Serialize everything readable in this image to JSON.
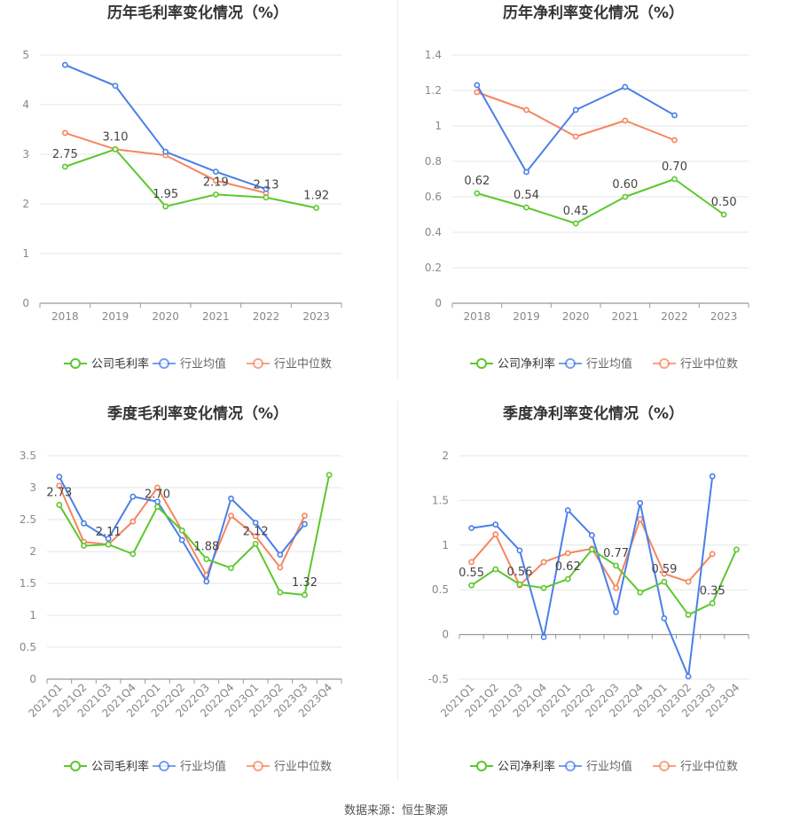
{
  "source": "数据来源：恒生聚源",
  "colors": {
    "company": "#5cc72f",
    "industry_avg": "#4a7fe8",
    "industry_median": "#f5865f"
  },
  "chart_data": [
    {
      "type": "line",
      "title": "历年毛利率变化情况（%）",
      "categories": [
        "2018",
        "2019",
        "2020",
        "2021",
        "2022",
        "2023"
      ],
      "ylim": [
        0,
        5
      ],
      "yticks": [
        0,
        1,
        2,
        3,
        4,
        5
      ],
      "ytick_labels": [
        "0",
        "1",
        "2",
        "3",
        "4",
        "5"
      ],
      "grid": true,
      "legend": "bottom",
      "series": [
        {
          "name": "公司毛利率",
          "color": "#5cc72f",
          "values": [
            2.75,
            3.1,
            1.95,
            2.19,
            2.13,
            1.92
          ],
          "labels": [
            "2.75",
            "3.10",
            "1.95",
            "2.19",
            "2.13",
            "1.92"
          ]
        },
        {
          "name": "行业均值",
          "color": "#4a7fe8",
          "values": [
            4.8,
            4.38,
            3.05,
            2.65,
            2.3,
            null
          ]
        },
        {
          "name": "行业中位数",
          "color": "#f5865f",
          "values": [
            3.43,
            3.1,
            2.98,
            2.47,
            2.22,
            null
          ]
        }
      ]
    },
    {
      "type": "line",
      "title": "历年净利率变化情况（%）",
      "categories": [
        "2018",
        "2019",
        "2020",
        "2021",
        "2022",
        "2023"
      ],
      "ylim": [
        0,
        1.4
      ],
      "yticks": [
        0,
        0.2,
        0.4,
        0.6,
        0.8,
        1,
        1.2,
        1.4
      ],
      "ytick_labels": [
        "0",
        "0.2",
        "0.4",
        "0.6",
        "0.8",
        "1",
        "1.2",
        "1.4"
      ],
      "grid": true,
      "legend": "bottom",
      "series": [
        {
          "name": "公司净利率",
          "color": "#5cc72f",
          "values": [
            0.62,
            0.54,
            0.45,
            0.6,
            0.7,
            0.5
          ],
          "labels": [
            "0.62",
            "0.54",
            "0.45",
            "0.60",
            "0.70",
            "0.50"
          ]
        },
        {
          "name": "行业均值",
          "color": "#4a7fe8",
          "values": [
            1.23,
            0.74,
            1.09,
            1.22,
            1.06,
            null
          ]
        },
        {
          "name": "行业中位数",
          "color": "#f5865f",
          "values": [
            1.19,
            1.09,
            0.94,
            1.03,
            0.92,
            null
          ]
        }
      ]
    },
    {
      "type": "line",
      "title": "季度毛利率变化情况（%）",
      "categories": [
        "2021Q1",
        "2021Q2",
        "2021Q3",
        "2021Q4",
        "2022Q1",
        "2022Q2",
        "2022Q3",
        "2022Q4",
        "2023Q1",
        "2023Q2",
        "2023Q3",
        "2023Q4"
      ],
      "ylim": [
        0,
        3.5
      ],
      "yticks": [
        0,
        0.5,
        1,
        1.5,
        2,
        2.5,
        3,
        3.5
      ],
      "ytick_labels": [
        "0",
        "0.5",
        "1",
        "1.5",
        "2",
        "2.5",
        "3",
        "3.5"
      ],
      "grid": true,
      "legend": "bottom",
      "series": [
        {
          "name": "公司毛利率",
          "color": "#5cc72f",
          "values": [
            2.73,
            2.09,
            2.11,
            1.96,
            2.7,
            2.33,
            1.88,
            1.74,
            2.12,
            1.36,
            1.32,
            3.2
          ],
          "labels": [
            "2.73",
            "",
            "2.11",
            "",
            "2.70",
            "",
            "1.88",
            "",
            "2.12",
            "",
            "1.32",
            ""
          ]
        },
        {
          "name": "行业均值",
          "color": "#4a7fe8",
          "values": [
            3.17,
            2.44,
            2.2,
            2.86,
            2.78,
            2.18,
            1.53,
            2.83,
            2.45,
            1.95,
            2.43,
            null
          ]
        },
        {
          "name": "行业中位数",
          "color": "#f5865f",
          "values": [
            3.03,
            2.15,
            2.11,
            2.47,
            3.0,
            2.33,
            1.63,
            2.56,
            2.24,
            1.75,
            2.56,
            null
          ]
        }
      ]
    },
    {
      "type": "line",
      "title": "季度净利率变化情况（%）",
      "categories": [
        "2021Q1",
        "2021Q2",
        "2021Q3",
        "2021Q4",
        "2022Q1",
        "2022Q2",
        "2022Q3",
        "2022Q4",
        "2023Q1",
        "2023Q2",
        "2023Q3",
        "2023Q4"
      ],
      "ylim": [
        -0.5,
        2
      ],
      "yticks": [
        -0.5,
        0,
        0.5,
        1,
        1.5,
        2
      ],
      "ytick_labels": [
        "-0.5",
        "0",
        "0.5",
        "1",
        "1.5",
        "2"
      ],
      "grid": true,
      "legend": "bottom",
      "series": [
        {
          "name": "公司净利率",
          "color": "#5cc72f",
          "values": [
            0.55,
            0.73,
            0.56,
            0.52,
            0.62,
            0.95,
            0.77,
            0.47,
            0.59,
            0.22,
            0.35,
            0.95
          ],
          "labels": [
            "0.55",
            "",
            "0.56",
            "",
            "0.62",
            "",
            "0.77",
            "",
            "0.59",
            "",
            "0.35",
            ""
          ]
        },
        {
          "name": "行业均值",
          "color": "#4a7fe8",
          "values": [
            1.19,
            1.23,
            0.94,
            -0.03,
            1.39,
            1.11,
            0.25,
            1.47,
            0.18,
            -0.47,
            1.77,
            null
          ]
        },
        {
          "name": "行业中位数",
          "color": "#f5865f",
          "values": [
            0.81,
            1.12,
            0.55,
            0.81,
            0.91,
            0.96,
            0.52,
            1.29,
            0.68,
            0.59,
            0.9,
            null
          ]
        }
      ]
    }
  ]
}
